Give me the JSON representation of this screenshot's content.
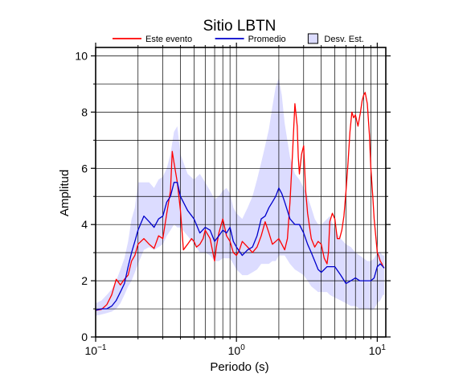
{
  "chart_data": {
    "type": "line",
    "title": "Sitio LBTN",
    "xlabel": "Periodo (s)",
    "ylabel": "Amplitud",
    "x_scale": "log",
    "xlim": [
      0.1,
      11.5
    ],
    "ylim": [
      0,
      10.3
    ],
    "x_ticks": [
      {
        "value": 0.1,
        "base": "10",
        "exp": "−1"
      },
      {
        "value": 1,
        "base": "10",
        "exp": "0"
      },
      {
        "value": 10,
        "base": "10",
        "exp": "1"
      }
    ],
    "y_ticks": [
      0,
      2,
      4,
      6,
      8,
      10
    ],
    "grid": true,
    "legend_position": "top-center",
    "legend": [
      {
        "label": "Este evento",
        "kind": "line",
        "color": "#ff0000"
      },
      {
        "label": "Promedio",
        "kind": "line",
        "color": "#0000cc"
      },
      {
        "label": "Desv. Est.",
        "kind": "patch",
        "color": "#dcdcff"
      }
    ],
    "series": [
      {
        "name": "Este evento",
        "color": "#ff0000",
        "x": [
          0.1,
          0.11,
          0.12,
          0.13,
          0.14,
          0.15,
          0.16,
          0.17,
          0.18,
          0.19,
          0.2,
          0.22,
          0.24,
          0.26,
          0.28,
          0.3,
          0.32,
          0.34,
          0.35,
          0.36,
          0.38,
          0.4,
          0.42,
          0.45,
          0.48,
          0.5,
          0.52,
          0.55,
          0.58,
          0.6,
          0.65,
          0.7,
          0.72,
          0.75,
          0.8,
          0.85,
          0.9,
          0.95,
          1.0,
          1.05,
          1.1,
          1.2,
          1.3,
          1.4,
          1.5,
          1.6,
          1.7,
          1.8,
          1.9,
          2.0,
          2.1,
          2.2,
          2.3,
          2.4,
          2.5,
          2.6,
          2.7,
          2.75,
          2.8,
          2.9,
          3.0,
          3.1,
          3.2,
          3.4,
          3.6,
          3.8,
          4.0,
          4.2,
          4.4,
          4.5,
          4.6,
          4.8,
          5.0,
          5.2,
          5.4,
          5.6,
          5.8,
          6.0,
          6.2,
          6.4,
          6.6,
          6.8,
          7.0,
          7.3,
          7.6,
          7.8,
          8.0,
          8.2,
          8.5,
          8.8,
          9.0,
          9.3,
          9.5,
          9.8,
          10.0,
          10.2,
          10.5,
          10.8,
          11.0,
          11.2
        ],
        "values": [
          0.95,
          0.98,
          1.15,
          1.5,
          2.05,
          1.85,
          2.05,
          2.2,
          2.7,
          2.9,
          3.3,
          3.5,
          3.3,
          3.15,
          3.6,
          3.5,
          4.4,
          5.2,
          6.6,
          6.2,
          5.5,
          4.5,
          3.1,
          3.3,
          3.5,
          3.4,
          3.2,
          3.3,
          3.5,
          3.8,
          3.5,
          2.7,
          3.2,
          3.7,
          4.2,
          3.6,
          3.4,
          3.0,
          2.9,
          3.1,
          3.4,
          3.2,
          3.0,
          3.2,
          3.6,
          4.1,
          3.7,
          3.3,
          3.4,
          3.5,
          3.3,
          3.1,
          3.5,
          4.8,
          6.5,
          8.3,
          7.5,
          6.4,
          5.8,
          6.5,
          6.8,
          5.2,
          4.4,
          3.5,
          3.2,
          3.4,
          3.3,
          2.8,
          2.6,
          3.0,
          4.1,
          4.4,
          4.2,
          3.5,
          3.5,
          3.8,
          4.3,
          5.2,
          6.2,
          7.3,
          8.0,
          7.8,
          7.9,
          7.5,
          8.0,
          8.4,
          8.6,
          8.7,
          8.3,
          7.2,
          6.0,
          5.0,
          4.2,
          3.5,
          3.0,
          2.9,
          2.7,
          2.6,
          2.5,
          2.45
        ]
      },
      {
        "name": "Promedio",
        "color": "#0000cc",
        "x": [
          0.1,
          0.11,
          0.12,
          0.13,
          0.14,
          0.15,
          0.16,
          0.17,
          0.18,
          0.19,
          0.2,
          0.22,
          0.24,
          0.26,
          0.28,
          0.3,
          0.32,
          0.34,
          0.36,
          0.38,
          0.4,
          0.45,
          0.5,
          0.55,
          0.6,
          0.65,
          0.7,
          0.75,
          0.8,
          0.85,
          0.9,
          0.95,
          1.0,
          1.1,
          1.2,
          1.3,
          1.4,
          1.5,
          1.6,
          1.7,
          1.8,
          1.9,
          2.0,
          2.1,
          2.2,
          2.4,
          2.6,
          2.8,
          3.0,
          3.2,
          3.4,
          3.6,
          3.8,
          4.0,
          4.2,
          4.4,
          4.6,
          5.0,
          5.5,
          6.0,
          6.5,
          7.0,
          7.5,
          8.0,
          8.5,
          9.0,
          9.5,
          10.0,
          10.5,
          11.0,
          11.2
        ],
        "values": [
          0.95,
          1.0,
          1.0,
          1.1,
          1.3,
          1.6,
          1.9,
          2.5,
          3.0,
          3.4,
          3.8,
          4.3,
          4.1,
          3.9,
          4.2,
          4.3,
          4.8,
          5.0,
          5.5,
          5.5,
          5.0,
          4.5,
          4.2,
          3.7,
          3.9,
          3.8,
          3.4,
          3.6,
          3.8,
          3.7,
          3.9,
          3.4,
          3.2,
          2.9,
          3.1,
          3.2,
          3.6,
          4.2,
          4.3,
          4.6,
          4.8,
          5.0,
          5.3,
          5.1,
          4.8,
          4.2,
          4.0,
          4.0,
          3.7,
          3.3,
          3.0,
          2.7,
          2.4,
          2.3,
          2.4,
          2.5,
          2.5,
          2.5,
          2.2,
          1.9,
          2.0,
          2.1,
          2.0,
          2.0,
          2.0,
          2.0,
          2.1,
          2.5,
          2.6,
          2.5,
          2.45
        ]
      },
      {
        "name": "Desv. Est.",
        "color": "#dcdcff",
        "x": [
          0.1,
          0.11,
          0.12,
          0.13,
          0.14,
          0.15,
          0.16,
          0.17,
          0.18,
          0.19,
          0.2,
          0.22,
          0.24,
          0.26,
          0.28,
          0.3,
          0.32,
          0.34,
          0.36,
          0.38,
          0.4,
          0.45,
          0.5,
          0.55,
          0.6,
          0.65,
          0.7,
          0.75,
          0.8,
          0.85,
          0.9,
          0.95,
          1.0,
          1.1,
          1.2,
          1.3,
          1.4,
          1.5,
          1.6,
          1.7,
          1.8,
          1.9,
          2.0,
          2.1,
          2.2,
          2.4,
          2.6,
          2.8,
          3.0,
          3.2,
          3.4,
          3.6,
          3.8,
          4.0,
          4.2,
          4.4,
          4.6,
          5.0,
          5.5,
          6.0,
          6.5,
          7.0,
          7.5,
          8.0,
          8.5,
          9.0,
          9.5,
          10.0,
          10.5,
          11.0,
          11.2
        ],
        "upper": [
          1.2,
          1.3,
          1.5,
          1.7,
          2.0,
          2.4,
          2.8,
          3.4,
          4.2,
          4.6,
          5.5,
          5.5,
          5.5,
          5.3,
          5.6,
          5.7,
          6.0,
          6.5,
          7.3,
          7.5,
          6.5,
          5.8,
          5.6,
          5.8,
          5.5,
          5.2,
          4.9,
          5.0,
          5.2,
          5.3,
          5.1,
          4.6,
          4.4,
          4.2,
          4.6,
          5.0,
          5.6,
          6.2,
          6.8,
          7.4,
          8.2,
          8.9,
          9.2,
          8.6,
          7.6,
          6.4,
          5.8,
          5.6,
          5.3,
          5.0,
          4.6,
          4.2,
          4.0,
          4.0,
          4.1,
          4.2,
          4.3,
          3.8,
          3.5,
          3.3,
          3.2,
          3.0,
          2.9,
          2.8,
          2.7,
          2.7,
          2.8,
          3.0,
          3.0,
          2.9,
          2.9
        ],
        "lower": [
          0.75,
          0.8,
          0.85,
          0.9,
          1.0,
          1.2,
          1.5,
          1.8,
          2.0,
          2.3,
          2.6,
          3.1,
          3.2,
          3.1,
          3.2,
          3.3,
          3.6,
          3.8,
          4.0,
          3.9,
          3.9,
          3.6,
          3.3,
          3.0,
          3.0,
          2.9,
          2.7,
          2.7,
          2.8,
          2.8,
          2.8,
          2.6,
          2.4,
          2.2,
          2.2,
          2.3,
          2.4,
          2.6,
          2.6,
          2.6,
          2.7,
          2.7,
          2.9,
          2.9,
          2.9,
          2.6,
          2.4,
          2.3,
          2.2,
          2.0,
          1.8,
          1.7,
          1.6,
          1.6,
          1.6,
          1.6,
          1.5,
          1.4,
          1.3,
          1.2,
          1.1,
          1.1,
          1.0,
          1.0,
          1.0,
          0.95,
          1.0,
          1.2,
          1.3,
          1.5,
          1.5
        ]
      }
    ]
  }
}
